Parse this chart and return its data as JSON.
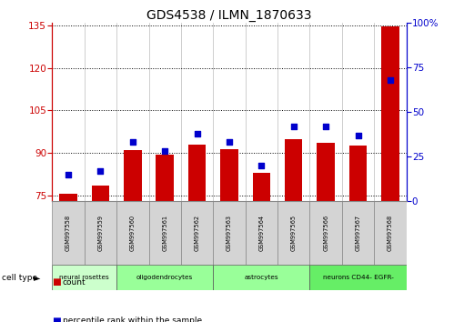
{
  "title": "GDS4538 / ILMN_1870633",
  "samples": [
    "GSM997558",
    "GSM997559",
    "GSM997560",
    "GSM997561",
    "GSM997562",
    "GSM997563",
    "GSM997564",
    "GSM997565",
    "GSM997566",
    "GSM997567",
    "GSM997568"
  ],
  "count_values": [
    75.5,
    78.5,
    91.0,
    89.5,
    93.0,
    91.5,
    83.0,
    95.0,
    93.5,
    92.5,
    134.5
  ],
  "percentile_values": [
    15,
    17,
    33,
    28,
    38,
    33,
    20,
    42,
    42,
    37,
    68
  ],
  "ylim_left": [
    73,
    136
  ],
  "ylim_right": [
    0,
    100
  ],
  "yticks_left": [
    75,
    90,
    105,
    120,
    135
  ],
  "yticks_right": [
    0,
    25,
    50,
    75,
    100
  ],
  "bar_color": "#cc0000",
  "dot_color": "#0000cc",
  "axis_label_color_left": "#cc0000",
  "axis_label_color_right": "#0000cc",
  "cell_types": [
    {
      "label": "neural rosettes",
      "span": [
        0,
        2
      ],
      "color": "#ccffcc"
    },
    {
      "label": "oligodendrocytes",
      "span": [
        2,
        5
      ],
      "color": "#99ff99"
    },
    {
      "label": "astrocytes",
      "span": [
        5,
        8
      ],
      "color": "#99ff99"
    },
    {
      "label": "neurons CD44- EGFR-",
      "span": [
        8,
        11
      ],
      "color": "#66ee66"
    }
  ],
  "cell_type_label": "cell type",
  "legend_count": "count",
  "legend_percentile": "percentile rank within the sample",
  "bg_color": "#ffffff",
  "sample_box_color": "#d4d4d4"
}
